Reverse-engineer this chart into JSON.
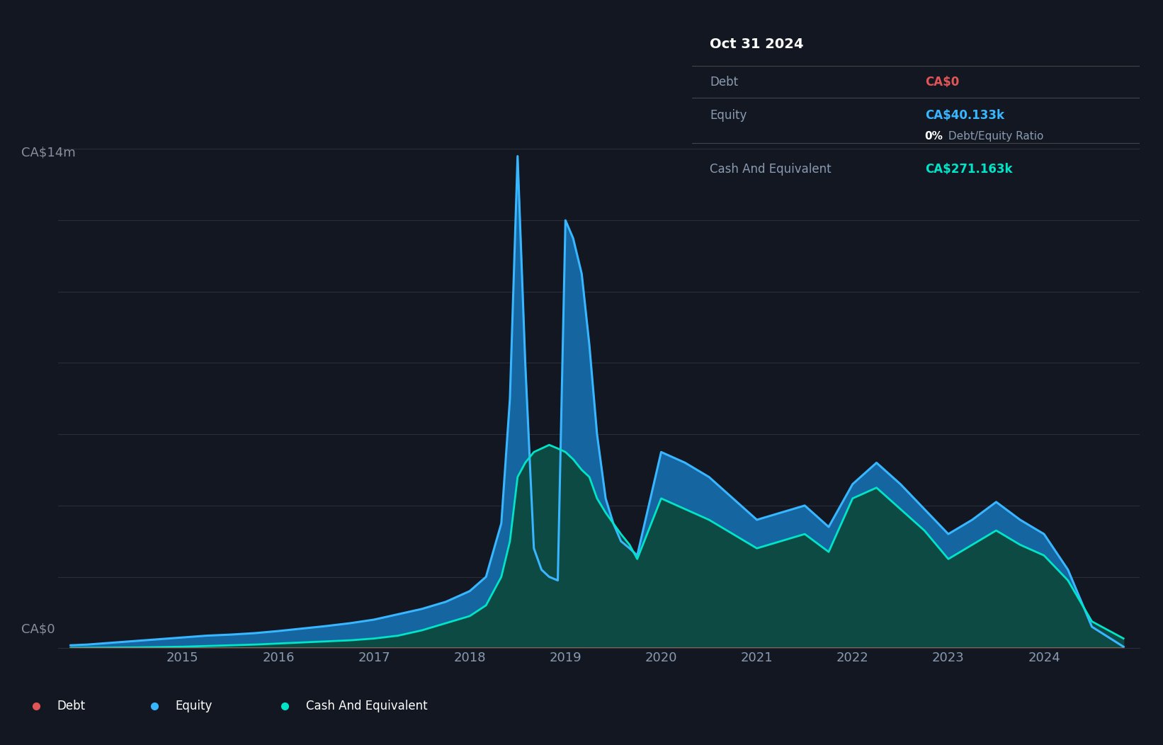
{
  "bg_color": "#131722",
  "plot_bg_color": "#131722",
  "grid_color": "#2a2e39",
  "y_label_top": "CA$14m",
  "y_label_bottom": "CA$0",
  "x_ticks": [
    "2015",
    "2016",
    "2017",
    "2018",
    "2019",
    "2020",
    "2021",
    "2022",
    "2023",
    "2024"
  ],
  "debt_color": "#e05555",
  "equity_color": "#38b6ff",
  "equity_fill_color": "#1565a0",
  "cash_color": "#00e5c8",
  "cash_fill_color": "#0d4a44",
  "tooltip_title": "Oct 31 2024",
  "tooltip_debt_label": "Debt",
  "tooltip_debt_value": "CA$0",
  "tooltip_debt_value_color": "#e05555",
  "tooltip_equity_label": "Equity",
  "tooltip_equity_value": "CA$40.133k",
  "tooltip_equity_value_color": "#38b6ff",
  "tooltip_ratio_bold": "0%",
  "tooltip_ratio_normal": " Debt/Equity Ratio",
  "tooltip_cash_label": "Cash And Equivalent",
  "tooltip_cash_value": "CA$271.163k",
  "tooltip_cash_value_color": "#00e5c8",
  "legend_debt": "Debt",
  "legend_equity": "Equity",
  "legend_cash": "Cash And Equivalent",
  "ymax": 14000000,
  "ymin": 0,
  "xmin": 2013.7,
  "xmax": 2025.0,
  "time_points": [
    2013.83,
    2014.0,
    2014.25,
    2014.5,
    2014.75,
    2015.0,
    2015.25,
    2015.5,
    2015.75,
    2016.0,
    2016.25,
    2016.5,
    2016.75,
    2017.0,
    2017.25,
    2017.5,
    2017.75,
    2018.0,
    2018.17,
    2018.33,
    2018.42,
    2018.5,
    2018.58,
    2018.67,
    2018.75,
    2018.83,
    2018.92,
    2019.0,
    2019.08,
    2019.17,
    2019.25,
    2019.33,
    2019.42,
    2019.5,
    2019.58,
    2019.67,
    2019.75,
    2020.0,
    2020.25,
    2020.5,
    2020.75,
    2021.0,
    2021.25,
    2021.5,
    2021.75,
    2022.0,
    2022.25,
    2022.5,
    2022.75,
    2023.0,
    2023.25,
    2023.5,
    2023.75,
    2024.0,
    2024.25,
    2024.5,
    2024.83
  ],
  "equity_values": [
    80000,
    100000,
    150000,
    200000,
    250000,
    300000,
    350000,
    380000,
    420000,
    480000,
    550000,
    620000,
    700000,
    800000,
    950000,
    1100000,
    1300000,
    1600000,
    2000000,
    3500000,
    7000000,
    13800000,
    8000000,
    2800000,
    2200000,
    2000000,
    1900000,
    12000000,
    11500000,
    10500000,
    8500000,
    6000000,
    4200000,
    3500000,
    3000000,
    2800000,
    2600000,
    5500000,
    5200000,
    4800000,
    4200000,
    3600000,
    3800000,
    4000000,
    3400000,
    4600000,
    5200000,
    4600000,
    3900000,
    3200000,
    3600000,
    4100000,
    3600000,
    3200000,
    2200000,
    600000,
    40133
  ],
  "cash_values": [
    5000,
    10000,
    15000,
    20000,
    30000,
    40000,
    60000,
    80000,
    100000,
    130000,
    160000,
    190000,
    220000,
    270000,
    350000,
    500000,
    700000,
    900000,
    1200000,
    2000000,
    3000000,
    4800000,
    5200000,
    5500000,
    5600000,
    5700000,
    5600000,
    5500000,
    5300000,
    5000000,
    4800000,
    4200000,
    3800000,
    3500000,
    3200000,
    2900000,
    2500000,
    4200000,
    3900000,
    3600000,
    3200000,
    2800000,
    3000000,
    3200000,
    2700000,
    4200000,
    4500000,
    3900000,
    3300000,
    2500000,
    2900000,
    3300000,
    2900000,
    2600000,
    1900000,
    750000,
    271163
  ],
  "debt_values": [
    0,
    0,
    0,
    0,
    0,
    0,
    0,
    0,
    0,
    0,
    0,
    0,
    0,
    0,
    0,
    0,
    0,
    0,
    0,
    0,
    0,
    0,
    0,
    0,
    0,
    0,
    0,
    0,
    0,
    0,
    0,
    0,
    0,
    0,
    0,
    0,
    0,
    0,
    0,
    0,
    0,
    0,
    0,
    0,
    0,
    0,
    0,
    0,
    0,
    0,
    0,
    0,
    0,
    0,
    0,
    0,
    0
  ]
}
